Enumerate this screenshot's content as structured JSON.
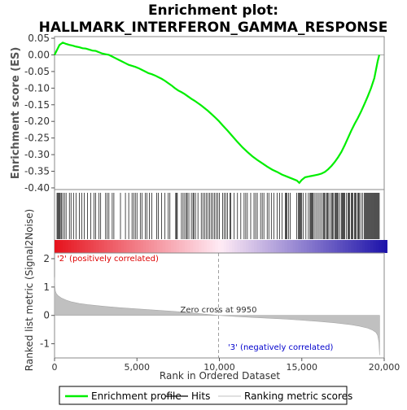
{
  "chart_data": {
    "type": "line",
    "title_line1": "Enrichment plot:",
    "title_line2": "HALLMARK_INTERFERON_GAMMA_RESPONSE",
    "panels": {
      "es": {
        "ylabel": "Enrichment score (ES)",
        "ylim": [
          -0.4,
          0.05
        ],
        "yticks": [
          "0.05",
          "0.00",
          "-0.05",
          "-0.10",
          "-0.15",
          "-0.20",
          "-0.25",
          "-0.30",
          "-0.35",
          "-0.40"
        ],
        "series": [
          {
            "name": "Enrichment profile",
            "color": "#00ee00",
            "x": [
              0,
              150,
              300,
              500,
              700,
              900,
              1100,
              1300,
              1500,
              1700,
              1900,
              2100,
              2300,
              2500,
              2700,
              2900,
              3100,
              3300,
              3500,
              3700,
              3900,
              4100,
              4300,
              4500,
              4700,
              4900,
              5100,
              5300,
              5500,
              5700,
              5900,
              6100,
              6300,
              6500,
              6700,
              6900,
              7100,
              7300,
              7500,
              7700,
              7900,
              8100,
              8300,
              8500,
              8700,
              8900,
              9100,
              9300,
              9500,
              9700,
              9950,
              10200,
              10500,
              10800,
              11100,
              11400,
              11700,
              12000,
              12300,
              12600,
              12900,
              13200,
              13500,
              13800,
              14100,
              14300,
              14500,
              14700,
              14850,
              15000,
              15200,
              15400,
              15600,
              15800,
              16000,
              16200,
              16400,
              16600,
              16800,
              17000,
              17200,
              17400,
              17600,
              17800,
              18000,
              18200,
              18400,
              18600,
              18800,
              19000,
              19200,
              19400,
              19500,
              19600,
              19700
            ],
            "y": [
              0.0,
              0.015,
              0.03,
              0.037,
              0.033,
              0.03,
              0.028,
              0.025,
              0.023,
              0.02,
              0.019,
              0.016,
              0.013,
              0.012,
              0.008,
              0.004,
              0.002,
              0.0,
              -0.005,
              -0.01,
              -0.015,
              -0.02,
              -0.025,
              -0.03,
              -0.033,
              -0.036,
              -0.04,
              -0.045,
              -0.05,
              -0.055,
              -0.058,
              -0.062,
              -0.067,
              -0.072,
              -0.078,
              -0.085,
              -0.092,
              -0.1,
              -0.107,
              -0.112,
              -0.118,
              -0.125,
              -0.132,
              -0.138,
              -0.145,
              -0.152,
              -0.16,
              -0.168,
              -0.177,
              -0.186,
              -0.198,
              -0.212,
              -0.228,
              -0.245,
              -0.262,
              -0.278,
              -0.292,
              -0.305,
              -0.316,
              -0.326,
              -0.336,
              -0.345,
              -0.352,
              -0.36,
              -0.366,
              -0.37,
              -0.374,
              -0.378,
              -0.385,
              -0.376,
              -0.368,
              -0.366,
              -0.364,
              -0.362,
              -0.36,
              -0.357,
              -0.352,
              -0.344,
              -0.334,
              -0.322,
              -0.308,
              -0.292,
              -0.272,
              -0.25,
              -0.228,
              -0.208,
              -0.19,
              -0.17,
              -0.148,
              -0.125,
              -0.1,
              -0.07,
              -0.045,
              -0.02,
              0.0
            ]
          }
        ]
      },
      "hits": {
        "x": [
          150,
          200,
          250,
          300,
          350,
          420,
          500,
          600,
          700,
          900,
          1000,
          1150,
          1300,
          1500,
          1650,
          1800,
          2000,
          2200,
          2400,
          2500,
          2700,
          2800,
          3100,
          3200,
          3300,
          3500,
          3600,
          4000,
          4300,
          4500,
          4700,
          4800,
          4900,
          5000,
          5200,
          5300,
          5500,
          5600,
          5750,
          5900,
          6200,
          6300,
          6500,
          6700,
          6900,
          7000,
          7350,
          7400,
          7450,
          7700,
          7800,
          7900,
          8000,
          8050,
          8150,
          8300,
          8400,
          8450,
          8550,
          8700,
          8900,
          9000,
          9100,
          9200,
          9300,
          9400,
          9500,
          9600,
          9700,
          9800,
          9900,
          10000,
          10200,
          10300,
          10400,
          10500,
          10650,
          10700,
          10900,
          11100,
          11300,
          11500,
          11600,
          11700,
          11900,
          12100,
          12200,
          12300,
          12500,
          12600,
          12700,
          12900,
          13000,
          13150,
          13300,
          13500,
          13650,
          13800,
          14000,
          14050,
          14100,
          14200,
          14300,
          14700,
          14800,
          14850,
          14900,
          14950,
          15000,
          15100,
          15250,
          15400,
          15500,
          15550,
          15600,
          15650,
          15700,
          15800,
          15900,
          16000,
          16100,
          16200,
          16300,
          16350,
          16400,
          16500,
          16550,
          16600,
          16700,
          16800,
          16850,
          16900,
          17000,
          17050,
          17100,
          17150,
          17200,
          17300,
          17400,
          17450,
          17500,
          17550,
          17600,
          17700,
          17800,
          17850,
          17900,
          18000,
          18050,
          18100,
          18200,
          18250,
          18300,
          18400,
          18450,
          18500,
          18600,
          18700,
          18800,
          18850,
          18900,
          18950,
          19000,
          19050,
          19100,
          19150,
          19200,
          19250,
          19300,
          19350,
          19400,
          19450,
          19500,
          19550,
          19600,
          19650,
          19700
        ]
      },
      "metric": {
        "ylabel": "Ranked list metric (Signal2Noise)",
        "xlabel": "Rank in Ordered Dataset",
        "ylim": [
          -1.5,
          2.2
        ],
        "yticks": [
          "2",
          "1",
          "0",
          "-1"
        ],
        "xticks": [
          "0",
          "5,000",
          "10,000",
          "15,000",
          "20,000"
        ],
        "xlim": [
          0,
          20000
        ],
        "x": [
          0,
          20,
          50,
          100,
          200,
          400,
          700,
          1000,
          1500,
          2000,
          3000,
          4000,
          5000,
          6000,
          7000,
          8000,
          9000,
          9950,
          11000,
          12000,
          13000,
          14000,
          15000,
          16000,
          17000,
          18000,
          18500,
          19000,
          19300,
          19500,
          19600,
          19680,
          19720
        ],
        "y": [
          1.35,
          1.0,
          0.86,
          0.78,
          0.7,
          0.62,
          0.54,
          0.48,
          0.42,
          0.38,
          0.32,
          0.27,
          0.23,
          0.19,
          0.15,
          0.11,
          0.05,
          0.0,
          -0.04,
          -0.07,
          -0.1,
          -0.13,
          -0.17,
          -0.21,
          -0.26,
          -0.33,
          -0.38,
          -0.45,
          -0.52,
          -0.6,
          -0.7,
          -0.95,
          -1.4
        ],
        "zero_cross_label": "Zero cross at 9950",
        "zero_cross_x": 9950,
        "pos_label": "'2' (positively correlated)",
        "neg_label": "'3' (negatively correlated)"
      }
    },
    "legend": {
      "position": "bottom",
      "items": [
        {
          "label": "Enrichment profile",
          "color": "#00ee00"
        },
        {
          "label": "Hits",
          "color": "#000000"
        },
        {
          "label": "Ranking metric scores",
          "color": "#c0c0c0"
        }
      ]
    },
    "colors": {
      "profile": "#00ee00",
      "hit": "#000000",
      "metric_fill": "#c0c0c0",
      "pos_label": "#dd0000",
      "neg_label": "#0000cc",
      "zero_line": "#888888"
    }
  }
}
